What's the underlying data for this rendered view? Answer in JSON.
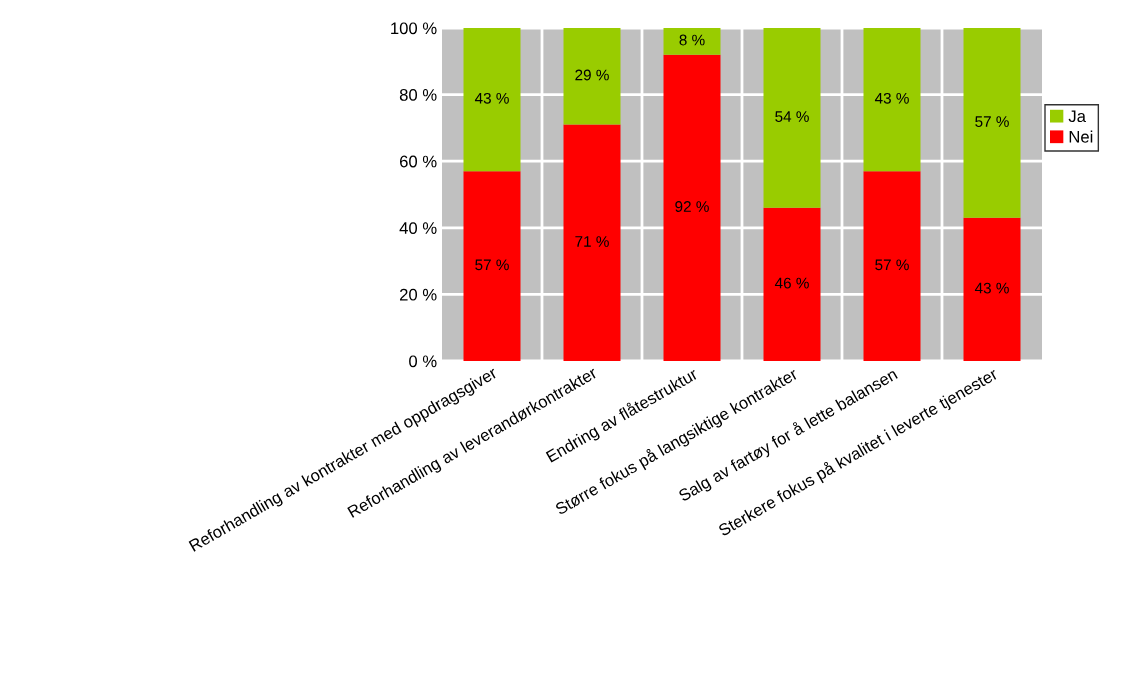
{
  "chart_data": {
    "type": "bar",
    "stacked": true,
    "categories": [
      "Reforhandling av kontrakter med oppdragsgiver",
      "Reforhandling av leverandørkontrakter",
      "Endring av flåtestruktur",
      "Større fokus på langsiktige kontrakter",
      "Salg av fartøy for å lette balansen",
      "Sterkere fokus på kvalitet i leverte tjenester"
    ],
    "series": [
      {
        "name": "Nei",
        "color": "#ff0000",
        "values": [
          57,
          71,
          92,
          46,
          57,
          43
        ],
        "value_labels": [
          "57 %",
          "71 %",
          "92 %",
          "46 %",
          "57 %",
          "43 %"
        ]
      },
      {
        "name": "Ja",
        "color": "#99cc00",
        "values": [
          43,
          29,
          8,
          54,
          43,
          57
        ],
        "value_labels": [
          "43 %",
          "29 %",
          "8 %",
          "54 %",
          "43 %",
          "57 %"
        ]
      }
    ],
    "ylim": [
      0,
      100
    ],
    "yticks": [
      {
        "value": 0,
        "label": "0 %"
      },
      {
        "value": 20,
        "label": "20 %"
      },
      {
        "value": 40,
        "label": "40 %"
      },
      {
        "value": 60,
        "label": "60 %"
      },
      {
        "value": 80,
        "label": "80 %"
      },
      {
        "value": 100,
        "label": "100 %"
      }
    ],
    "grid": true,
    "legend": "right"
  }
}
